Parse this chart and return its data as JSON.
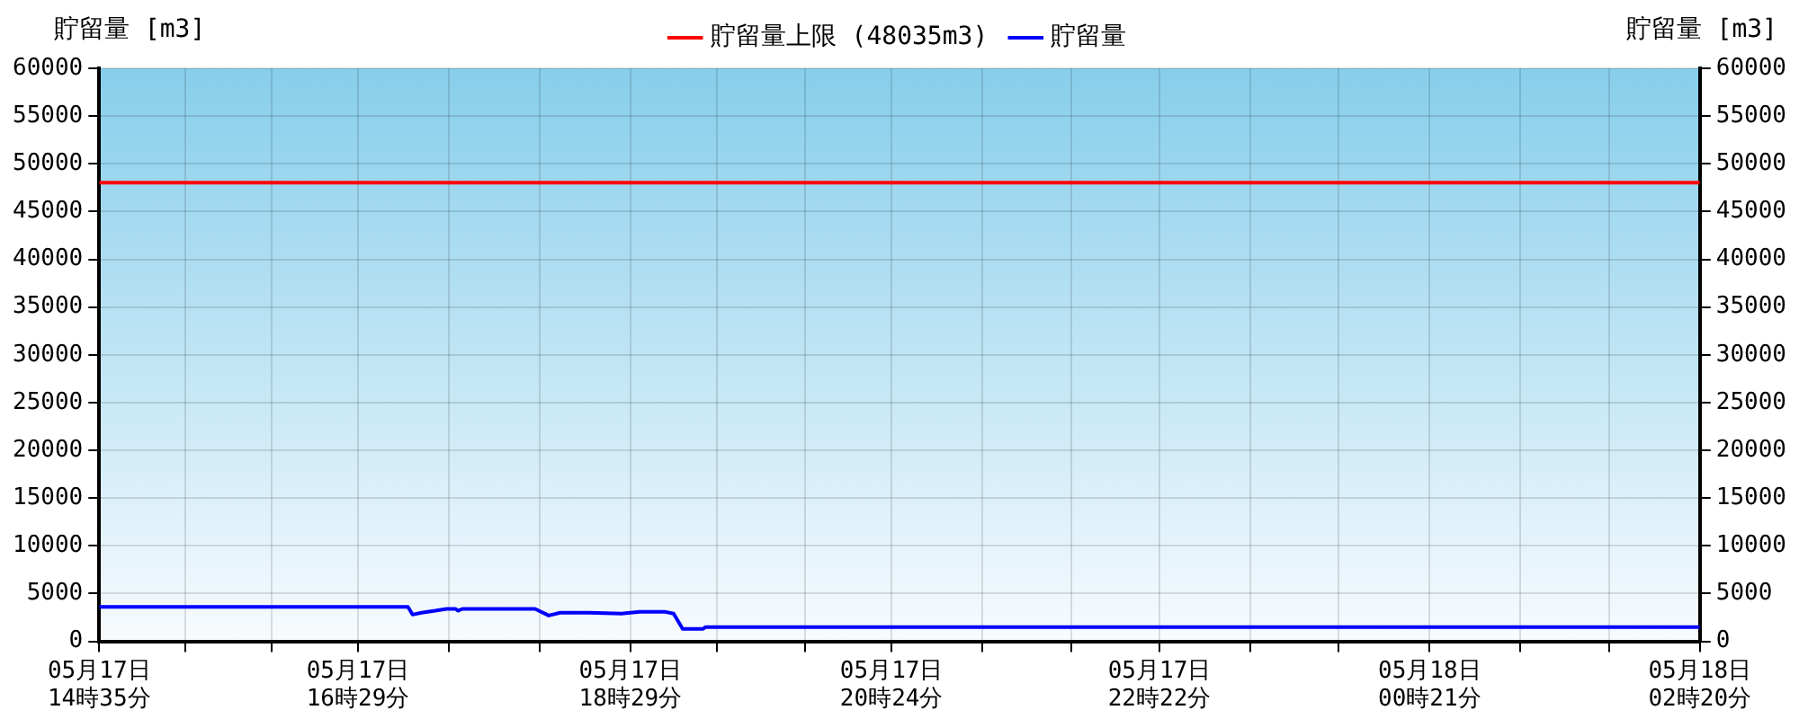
{
  "chart_data": {
    "type": "line",
    "ylabel": "貯留量 [m3]",
    "y2label": "貯留量 [m3]",
    "xlim": [
      "--05-17T14:35",
      "--05-18T02:20"
    ],
    "xticks": [
      {
        "value": "--05-17T14:35",
        "label": "05月17日\n14時35分"
      },
      {
        "value": "--05-17T15:13",
        "label": null
      },
      {
        "value": "--05-17T15:51",
        "label": null
      },
      {
        "value": "--05-17T16:29",
        "label": "05月17日\n16時29分"
      },
      {
        "value": "--05-17T17:09",
        "label": null
      },
      {
        "value": "--05-17T17:49",
        "label": null
      },
      {
        "value": "--05-17T18:29",
        "label": "05月17日\n18時29分"
      },
      {
        "value": "--05-17T19:07",
        "label": null
      },
      {
        "value": "--05-17T19:46",
        "label": null
      },
      {
        "value": "--05-17T20:24",
        "label": "05月17日\n20時24分"
      },
      {
        "value": "--05-17T21:04",
        "label": null
      },
      {
        "value": "--05-17T21:43",
        "label": null
      },
      {
        "value": "--05-17T22:22",
        "label": "05月17日\n22時22分"
      },
      {
        "value": "--05-17T23:02",
        "label": null
      },
      {
        "value": "--05-17T23:41",
        "label": null
      },
      {
        "value": "--05-18T00:21",
        "label": "05月18日\n00時21分"
      },
      {
        "value": "--05-18T01:01",
        "label": null
      },
      {
        "value": "--05-18T01:40",
        "label": null
      },
      {
        "value": "--05-18T02:20",
        "label": "05月18日\n02時20分"
      }
    ],
    "ylim": [
      0,
      60000
    ],
    "yticks": [
      0,
      5000,
      10000,
      15000,
      20000,
      25000,
      30000,
      35000,
      40000,
      45000,
      50000,
      55000,
      60000
    ],
    "y2lim": [
      0,
      60000
    ],
    "y2ticks": [
      0,
      5000,
      10000,
      15000,
      20000,
      25000,
      30000,
      35000,
      40000,
      45000,
      50000,
      55000,
      60000
    ],
    "grid": true,
    "legend": "top",
    "marker": "none",
    "line_style": "solid",
    "series": [
      {
        "name": "貯留量上限 (48035m3)",
        "color": "#ff0000",
        "x": [
          "--05-17T14:35",
          "--05-18T02:20"
        ],
        "values": [
          48035,
          48035
        ]
      },
      {
        "name": "貯留量",
        "color": "#0000ff",
        "x": [
          "--05-17T14:35",
          "--05-17T16:51",
          "--05-17T16:53",
          "--05-17T16:57",
          "--05-17T17:03",
          "--05-17T17:08",
          "--05-17T17:12",
          "--05-17T17:13",
          "--05-17T17:15",
          "--05-17T17:47",
          "--05-17T17:53",
          "--05-17T17:58",
          "--05-17T18:11",
          "--05-17T18:25",
          "--05-17T18:33",
          "--05-17T18:44",
          "--05-17T18:48",
          "--05-17T18:52",
          "--05-17T19:01",
          "--05-17T19:02",
          "--05-18T02:20"
        ],
        "values": [
          3600,
          3600,
          2800,
          3000,
          3200,
          3400,
          3400,
          3200,
          3400,
          3400,
          2700,
          3000,
          3000,
          2900,
          3100,
          3100,
          2900,
          1300,
          1300,
          1500,
          1500
        ]
      }
    ]
  }
}
